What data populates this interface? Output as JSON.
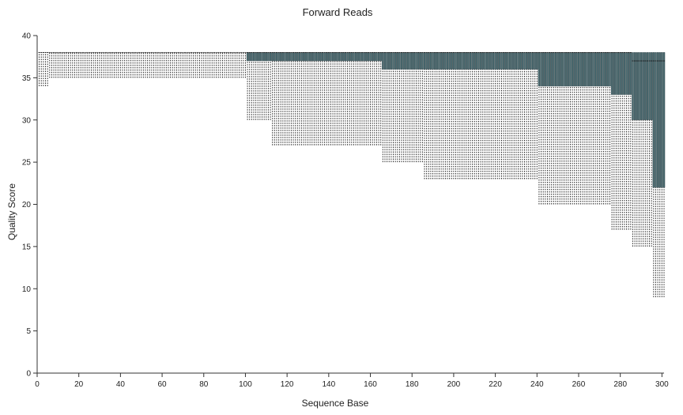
{
  "chart_data": {
    "type": "box",
    "title": "Forward Reads",
    "xlabel": "Sequence Base",
    "ylabel": "Quality Score",
    "xlim": [
      0,
      301
    ],
    "ylim": [
      0,
      40
    ],
    "x_ticks": [
      0,
      20,
      40,
      60,
      80,
      100,
      120,
      140,
      160,
      180,
      200,
      220,
      240,
      260,
      280,
      300
    ],
    "y_ticks": [
      0,
      5,
      10,
      15,
      20,
      25,
      30,
      35,
      40
    ],
    "grid": false,
    "box_fill_color": "#4a6a70",
    "whisker_color": "#222222",
    "segments": [
      {
        "start": 1,
        "end": 5,
        "q1": 38,
        "median": 38,
        "q3": 38,
        "whisker_low": 34,
        "whisker_high": 38
      },
      {
        "start": 6,
        "end": 100,
        "q1": 38,
        "median": 38,
        "q3": 38,
        "whisker_low": 35,
        "whisker_high": 38
      },
      {
        "start": 101,
        "end": 112,
        "q1": 37,
        "median": 38,
        "q3": 38,
        "whisker_low": 30,
        "whisker_high": 38
      },
      {
        "start": 113,
        "end": 165,
        "q1": 37,
        "median": 38,
        "q3": 38,
        "whisker_low": 27,
        "whisker_high": 38
      },
      {
        "start": 166,
        "end": 185,
        "q1": 36,
        "median": 38,
        "q3": 38,
        "whisker_low": 25,
        "whisker_high": 38
      },
      {
        "start": 186,
        "end": 240,
        "q1": 36,
        "median": 38,
        "q3": 38,
        "whisker_low": 23,
        "whisker_high": 38
      },
      {
        "start": 241,
        "end": 275,
        "q1": 34,
        "median": 38,
        "q3": 38,
        "whisker_low": 20,
        "whisker_high": 38
      },
      {
        "start": 276,
        "end": 285,
        "q1": 33,
        "median": 38,
        "q3": 38,
        "whisker_low": 17,
        "whisker_high": 38
      },
      {
        "start": 286,
        "end": 295,
        "q1": 30,
        "median": 37,
        "q3": 38,
        "whisker_low": 15,
        "whisker_high": 38
      },
      {
        "start": 296,
        "end": 301,
        "q1": 22,
        "median": 37,
        "q3": 38,
        "whisker_low": 9,
        "whisker_high": 38
      }
    ]
  }
}
